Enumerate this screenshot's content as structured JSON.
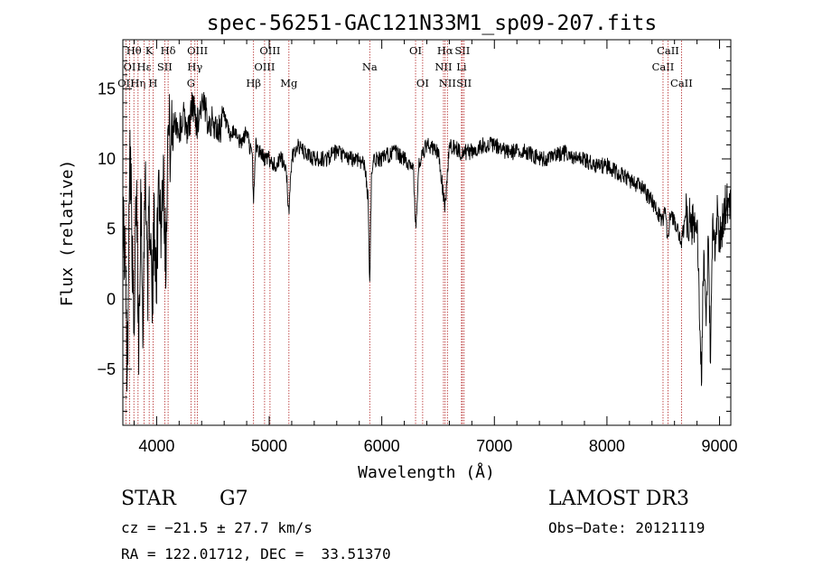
{
  "chart_data": {
    "type": "line",
    "title": "spec-56251-GAC121N33M1_sp09-207.fits",
    "xlabel": "Wavelength (Å)",
    "ylabel": "Flux (relative)",
    "xlim": [
      3700,
      9100
    ],
    "ylim": [
      -9,
      18.5
    ],
    "xticks": [
      4000,
      5000,
      6000,
      7000,
      8000,
      9000
    ],
    "yticks": [
      -5,
      0,
      5,
      10,
      15
    ],
    "xtick_labels": [
      "4000",
      "5000",
      "6000",
      "7000",
      "8000",
      "9000"
    ],
    "ytick_labels": [
      "−5",
      "0",
      "5",
      "10",
      "15"
    ],
    "line_color": "#000000",
    "marker_color": "#b22222",
    "series": [
      {
        "name": "flux",
        "x": [
          3700,
          3720,
          3740,
          3760,
          3780,
          3800,
          3820,
          3840,
          3860,
          3880,
          3900,
          3920,
          3940,
          3960,
          3980,
          4000,
          4020,
          4040,
          4060,
          4080,
          4100,
          4130,
          4160,
          4200,
          4240,
          4280,
          4320,
          4360,
          4400,
          4450,
          4500,
          4550,
          4600,
          4650,
          4700,
          4750,
          4800,
          4850,
          4861,
          4880,
          4920,
          4960,
          5000,
          5050,
          5100,
          5150,
          5175,
          5200,
          5250,
          5300,
          5400,
          5500,
          5600,
          5700,
          5800,
          5850,
          5880,
          5893,
          5910,
          5950,
          6000,
          6100,
          6200,
          6280,
          6300,
          6330,
          6350,
          6400,
          6500,
          6563,
          6600,
          6700,
          6800,
          6900,
          7000,
          7100,
          7200,
          7300,
          7400,
          7500,
          7600,
          7700,
          7800,
          7900,
          8000,
          8100,
          8200,
          8300,
          8400,
          8498,
          8520,
          8542,
          8560,
          8600,
          8662,
          8700,
          8750,
          8800,
          8820,
          8840,
          8860,
          8880,
          8900,
          8920,
          8940,
          8960,
          8980,
          9000,
          9020,
          9040,
          9060
        ],
        "y": [
          6,
          3,
          -6,
          12,
          5,
          -4,
          9,
          -3,
          8,
          -2,
          10,
          1,
          7,
          -1,
          6,
          2,
          9,
          5,
          10,
          3,
          12,
          11,
          13,
          12,
          13,
          12,
          14,
          12.5,
          14,
          13,
          12.5,
          12,
          13,
          11.5,
          12,
          11,
          12,
          10,
          7,
          11,
          10.5,
          10,
          10,
          9.5,
          10,
          9.5,
          6,
          10,
          11,
          10.5,
          10,
          10,
          10.5,
          10,
          10,
          9.5,
          7,
          1,
          9.5,
          10,
          10,
          10.5,
          10,
          9.5,
          5,
          9.5,
          10,
          11,
          10.5,
          6.5,
          11,
          10.5,
          10.5,
          11,
          11,
          10.5,
          10.5,
          10.5,
          10,
          10,
          10.5,
          10,
          10,
          9.5,
          9.5,
          9,
          8.5,
          8,
          7,
          5.5,
          6.5,
          4,
          6,
          5.5,
          4,
          6,
          5.5,
          5,
          0,
          -6,
          4,
          -3,
          5,
          -5,
          6,
          3,
          6,
          4,
          5,
          6,
          7
        ]
      }
    ],
    "spectral_lines": [
      {
        "label": "Hθ",
        "x": 3798,
        "row": 0
      },
      {
        "label": "Hη",
        "x": 3835,
        "row": 2
      },
      {
        "label": "OII",
        "x": 3727,
        "row": 2
      },
      {
        "label": "OI",
        "x": 3760,
        "row": 1
      },
      {
        "label": "Hε",
        "x": 3889,
        "row": 1
      },
      {
        "label": "K",
        "x": 3934,
        "row": 0
      },
      {
        "label": "H",
        "x": 3968,
        "row": 2
      },
      {
        "label": "SII",
        "x": 4072,
        "row": 1
      },
      {
        "label": "Hδ",
        "x": 4102,
        "row": 0
      },
      {
        "label": "OIII",
        "x": 4363,
        "row": 0
      },
      {
        "label": "Hγ",
        "x": 4340,
        "row": 1
      },
      {
        "label": "G",
        "x": 4305,
        "row": 2
      },
      {
        "label": "Hβ",
        "x": 4861,
        "row": 2
      },
      {
        "label": "OIII",
        "x": 4959,
        "row": 1
      },
      {
        "label": "OIII",
        "x": 5007,
        "row": 0
      },
      {
        "label": "Mg",
        "x": 5175,
        "row": 2
      },
      {
        "label": "Na",
        "x": 5893,
        "row": 1
      },
      {
        "label": "OI",
        "x": 6300,
        "row": 0
      },
      {
        "label": "OI",
        "x": 6363,
        "row": 2
      },
      {
        "label": "NII",
        "x": 6548,
        "row": 1
      },
      {
        "label": "Hα",
        "x": 6563,
        "row": 0
      },
      {
        "label": "NII",
        "x": 6583,
        "row": 2
      },
      {
        "label": "SII",
        "x": 6716,
        "row": 0
      },
      {
        "label": "Li",
        "x": 6708,
        "row": 1
      },
      {
        "label": "SII",
        "x": 6731,
        "row": 2
      },
      {
        "label": "CaII",
        "x": 8498,
        "row": 1
      },
      {
        "label": "CaII",
        "x": 8542,
        "row": 0
      },
      {
        "label": "CaII",
        "x": 8662,
        "row": 2
      }
    ]
  },
  "info": {
    "class": "STAR",
    "subclass": "G7",
    "survey": "LAMOST DR3",
    "cz": "cz = −21.5 ± 27.7 km/s",
    "obs_date": "Obs−Date: 20121119",
    "coords": "RA = 122.01712, DEC =  33.51370"
  }
}
